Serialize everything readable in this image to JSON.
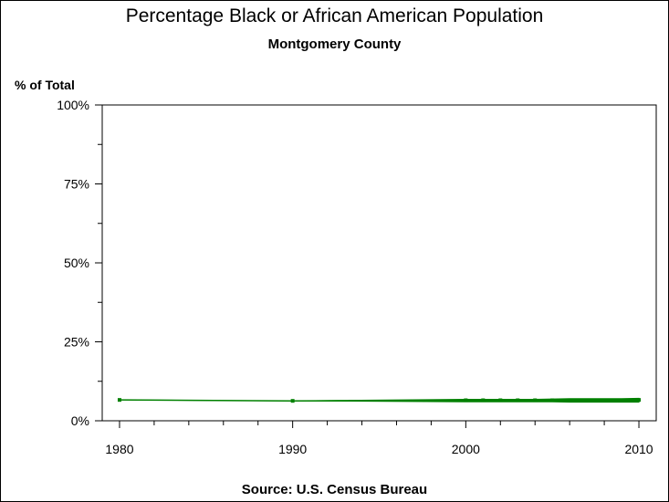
{
  "title": "Percentage Black or African American Population",
  "subtitle": "Montgomery County",
  "source": "Source: U.S. Census Bureau",
  "chart_data": {
    "type": "line",
    "title": "Percentage Black or African American Population",
    "subtitle": "Montgomery County",
    "ylabel": "% of Total",
    "xlabel": "",
    "xlim": [
      1979,
      2011
    ],
    "ylim": [
      0,
      100
    ],
    "x_ticks": [
      1980,
      1990,
      2000,
      2010
    ],
    "y_ticks": [
      0,
      25,
      50,
      75,
      100
    ],
    "y_tick_labels": [
      "0%",
      "25%",
      "50%",
      "75%",
      "100%"
    ],
    "grid": false,
    "series": [
      {
        "color": "#008000",
        "x": [
          1980,
          1990,
          2000,
          2001,
          2002,
          2003,
          2004,
          2005,
          2006,
          2007,
          2008,
          2009,
          2010
        ],
        "y": [
          6.6,
          6.3,
          6.5,
          6.5,
          6.5,
          6.5,
          6.5,
          6.5,
          6.5,
          6.5,
          6.5,
          6.5,
          6.6
        ],
        "band_low": [
          6.6,
          6.3,
          6.0,
          6.0,
          6.0,
          6.0,
          6.0,
          6.0,
          5.9,
          5.9,
          5.9,
          5.9,
          5.9
        ],
        "band_high": [
          6.6,
          6.3,
          6.8,
          6.8,
          6.8,
          6.8,
          6.8,
          6.9,
          7.0,
          7.0,
          7.0,
          7.0,
          7.1
        ]
      }
    ]
  }
}
